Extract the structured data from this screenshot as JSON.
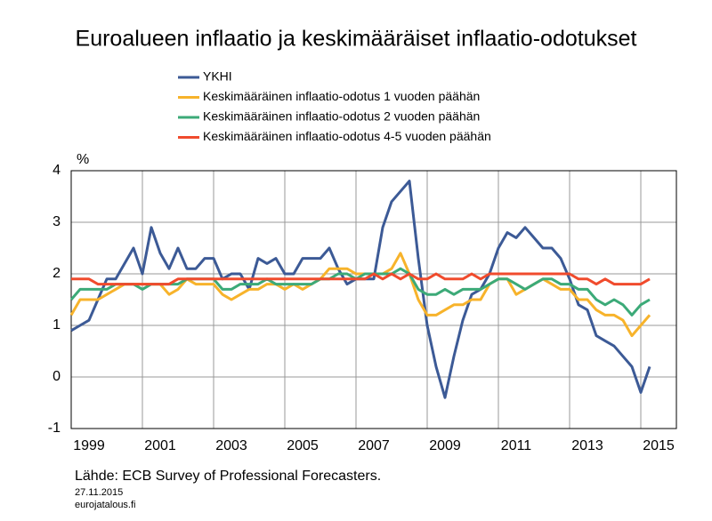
{
  "chart_data": {
    "type": "line",
    "title": "Euroalueen inflaatio ja keskimääräiset inflaatio-odotukset",
    "y_label": "%",
    "source": "Lähde: ECB Survey of Professional Forecasters.",
    "date": "27.11.2015",
    "site": "eurojatalous.fi",
    "x": [
      1999,
      1999.25,
      1999.5,
      1999.75,
      2000,
      2000.25,
      2000.5,
      2000.75,
      2001,
      2001.25,
      2001.5,
      2001.75,
      2002,
      2002.25,
      2002.5,
      2002.75,
      2003,
      2003.25,
      2003.5,
      2003.75,
      2004,
      2004.25,
      2004.5,
      2004.75,
      2005,
      2005.25,
      2005.5,
      2005.75,
      2006,
      2006.25,
      2006.5,
      2006.75,
      2007,
      2007.25,
      2007.5,
      2007.75,
      2008,
      2008.25,
      2008.5,
      2008.75,
      2009,
      2009.25,
      2009.5,
      2009.75,
      2010,
      2010.25,
      2010.5,
      2010.75,
      2011,
      2011.25,
      2011.5,
      2011.75,
      2012,
      2012.25,
      2012.5,
      2012.75,
      2013,
      2013.25,
      2013.5,
      2013.75,
      2014,
      2014.25,
      2014.5,
      2014.75,
      2015,
      2015.25
    ],
    "series": [
      {
        "name": "YKHI",
        "color": "#3c5a96",
        "values": [
          0.9,
          1.0,
          1.1,
          1.5,
          1.9,
          1.9,
          2.2,
          2.5,
          2.0,
          2.9,
          2.4,
          2.1,
          2.5,
          2.1,
          2.1,
          2.3,
          2.3,
          1.9,
          2.0,
          2.0,
          1.7,
          2.3,
          2.2,
          2.3,
          2.0,
          2.0,
          2.3,
          2.3,
          2.3,
          2.5,
          2.1,
          1.8,
          1.9,
          1.9,
          1.9,
          2.9,
          3.4,
          3.6,
          3.8,
          2.3,
          1.0,
          0.2,
          -0.4,
          0.4,
          1.1,
          1.6,
          1.7,
          2.0,
          2.5,
          2.8,
          2.7,
          2.9,
          2.7,
          2.5,
          2.5,
          2.3,
          1.9,
          1.4,
          1.3,
          0.8,
          0.7,
          0.6,
          0.4,
          0.2,
          -0.3,
          0.2
        ]
      },
      {
        "name": "Keskimääräinen inflaatio-odotus 1 vuoden päähän",
        "color": "#f7b32b",
        "values": [
          1.2,
          1.5,
          1.5,
          1.5,
          1.6,
          1.7,
          1.8,
          1.8,
          1.8,
          1.8,
          1.8,
          1.6,
          1.7,
          1.9,
          1.8,
          1.8,
          1.8,
          1.6,
          1.5,
          1.6,
          1.7,
          1.7,
          1.8,
          1.8,
          1.7,
          1.8,
          1.7,
          1.8,
          1.9,
          2.1,
          2.1,
          2.1,
          2.0,
          2.0,
          2.0,
          2.0,
          2.1,
          2.4,
          2.0,
          1.5,
          1.2,
          1.2,
          1.3,
          1.4,
          1.4,
          1.5,
          1.5,
          1.8,
          1.9,
          1.9,
          1.6,
          1.7,
          1.8,
          1.9,
          1.8,
          1.7,
          1.7,
          1.5,
          1.5,
          1.3,
          1.2,
          1.2,
          1.1,
          0.8,
          1.0,
          1.2
        ]
      },
      {
        "name": "Keskimääräinen inflaatio-odotus 2 vuoden päähän",
        "color": "#3caa78",
        "values": [
          1.5,
          1.7,
          1.7,
          1.7,
          1.7,
          1.8,
          1.8,
          1.8,
          1.7,
          1.8,
          1.8,
          1.8,
          1.8,
          1.9,
          1.9,
          1.9,
          1.9,
          1.7,
          1.7,
          1.8,
          1.8,
          1.8,
          1.9,
          1.8,
          1.8,
          1.8,
          1.8,
          1.8,
          1.9,
          1.9,
          2.0,
          2.0,
          1.9,
          2.0,
          2.0,
          2.0,
          2.0,
          2.1,
          2.0,
          1.7,
          1.6,
          1.6,
          1.7,
          1.6,
          1.7,
          1.7,
          1.7,
          1.8,
          1.9,
          1.9,
          1.8,
          1.7,
          1.8,
          1.9,
          1.9,
          1.8,
          1.8,
          1.7,
          1.7,
          1.5,
          1.4,
          1.5,
          1.4,
          1.2,
          1.4,
          1.5
        ]
      },
      {
        "name": "Keskimääräinen inflaatio-odotus 4-5 vuoden päähän",
        "color": "#f04b2d",
        "values": [
          1.9,
          1.9,
          1.9,
          1.8,
          1.8,
          1.8,
          1.8,
          1.8,
          1.8,
          1.8,
          1.8,
          1.8,
          1.9,
          1.9,
          1.9,
          1.9,
          1.9,
          1.9,
          1.9,
          1.9,
          1.9,
          1.9,
          1.9,
          1.9,
          1.9,
          1.9,
          1.9,
          1.9,
          1.9,
          1.9,
          1.9,
          1.9,
          1.9,
          1.9,
          2.0,
          1.9,
          2.0,
          1.9,
          2.0,
          1.9,
          1.9,
          2.0,
          1.9,
          1.9,
          1.9,
          2.0,
          1.9,
          2.0,
          2.0,
          2.0,
          2.0,
          2.0,
          2.0,
          2.0,
          2.0,
          2.0,
          2.0,
          1.9,
          1.9,
          1.8,
          1.9,
          1.8,
          1.8,
          1.8,
          1.8,
          1.9
        ]
      }
    ],
    "xlim": [
      1999,
      2016
    ],
    "xticks": [
      {
        "value": 1999.5,
        "label": "1999"
      },
      {
        "value": 2001.5,
        "label": "2001"
      },
      {
        "value": 2003.5,
        "label": "2003"
      },
      {
        "value": 2005.5,
        "label": "2005"
      },
      {
        "value": 2007.5,
        "label": "2007"
      },
      {
        "value": 2009.5,
        "label": "2009"
      },
      {
        "value": 2011.5,
        "label": "2011"
      },
      {
        "value": 2013.5,
        "label": "2013"
      },
      {
        "value": 2015.5,
        "label": "2015"
      }
    ],
    "x_gridlines": [
      2001,
      2003,
      2005,
      2007,
      2009,
      2011,
      2013,
      2015
    ],
    "ylim": [
      -1,
      4
    ],
    "yticks": [
      -1,
      0,
      1,
      2,
      3,
      4
    ],
    "grid": true
  }
}
